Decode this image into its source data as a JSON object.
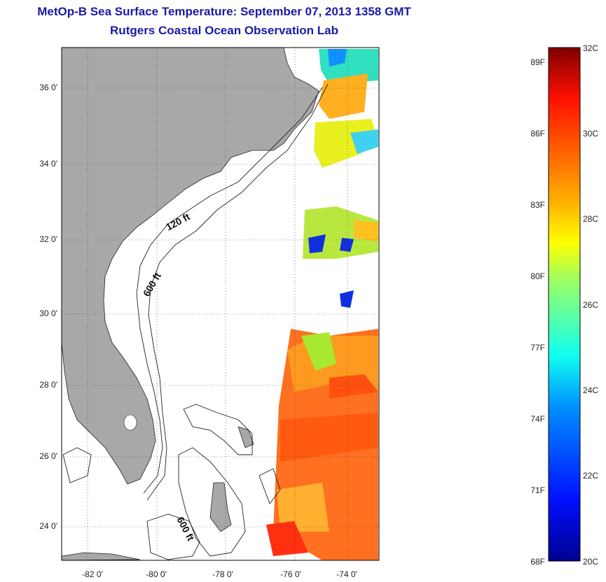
{
  "title": {
    "line1": "MetOp-B Sea Surface Temperature:  September 07, 2013 1358 GMT",
    "line2": "Rutgers Coastal Ocean Observation Lab"
  },
  "map": {
    "land_color": "#a8a8a8",
    "ocean_color": "#ffffff",
    "lat_range": [
      23,
      37
    ],
    "lon_range": [
      -83,
      -73
    ],
    "lat_labels": [
      "36 0'",
      "34 0'",
      "32 0'",
      "30 0'",
      "28 0'",
      "26 0'",
      "24 0'"
    ],
    "lon_labels": [
      "-82 0'",
      "-80 0'",
      "-78 0'",
      "-76 0'",
      "-74 0'"
    ],
    "isobath_labels": [
      "120 ft",
      "600 ft",
      "600 ft"
    ]
  },
  "colorbar": {
    "celsius_labels": [
      "32C",
      "30C",
      "28C",
      "26C",
      "24C",
      "22C",
      "20C"
    ],
    "fahrenheit_labels": [
      "89F",
      "86F",
      "83F",
      "80F",
      "77F",
      "74F",
      "71F",
      "68F"
    ],
    "range_c": [
      20,
      32
    ]
  }
}
